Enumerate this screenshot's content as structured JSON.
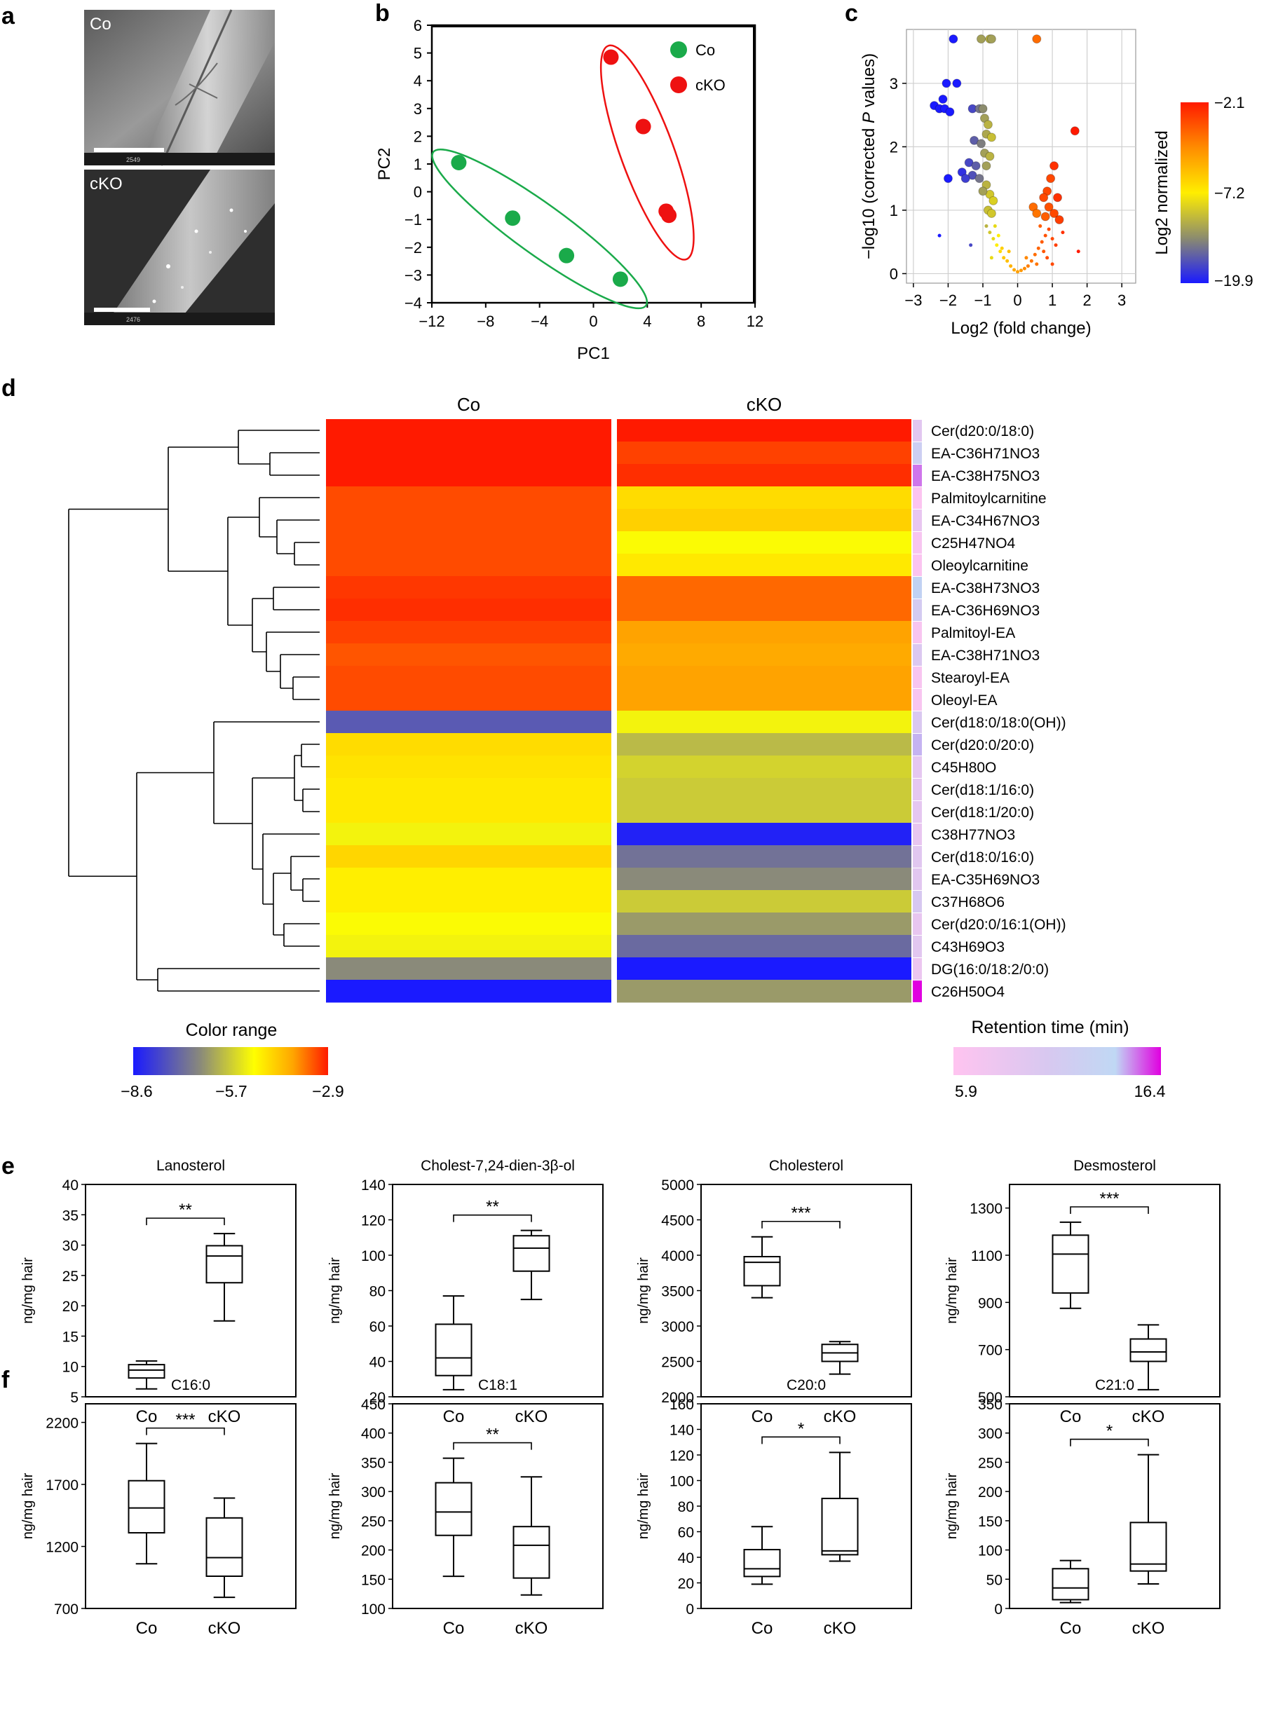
{
  "panels": {
    "a": {
      "letter": "a",
      "images": [
        {
          "label": "Co",
          "footer": "2549"
        },
        {
          "label": "cKO",
          "footer": "2476"
        }
      ]
    },
    "b": {
      "letter": "b",
      "chart_data": {
        "type": "scatter",
        "xlabel": "PC1",
        "ylabel": "PC2",
        "xlim": [
          -12,
          12
        ],
        "ylim": [
          -4,
          6
        ],
        "xticks": [
          -12,
          -8,
          -4,
          0,
          4,
          8,
          12
        ],
        "yticks": [
          -4,
          -3,
          -2,
          -1,
          0,
          1,
          2,
          3,
          4,
          5,
          6
        ],
        "legend_position": "top-right",
        "series": [
          {
            "name": "Co",
            "color": "#1aaa4a",
            "points": [
              [
                -10,
                1.05
              ],
              [
                -6,
                -0.95
              ],
              [
                -2,
                -2.3
              ],
              [
                2,
                -3.15
              ]
            ]
          },
          {
            "name": "cKO",
            "color": "#ee1111",
            "points": [
              [
                1.3,
                4.85
              ],
              [
                3.7,
                2.35
              ],
              [
                5.4,
                -0.7
              ],
              [
                5.6,
                -0.85
              ]
            ]
          }
        ]
      }
    },
    "c": {
      "letter": "c",
      "chart_data": {
        "type": "scatter",
        "xlabel": "Log2 (fold change)",
        "ylabel_prefix": "−log10 (corrected ",
        "ylabel_italic": "P",
        "ylabel_suffix": " values)",
        "xlim": [
          -3.2,
          3.4
        ],
        "ylim": [
          -0.15,
          3.85
        ],
        "xticks": [
          -3,
          -2,
          -1,
          0,
          1,
          2,
          3
        ],
        "yticks": [
          0,
          1,
          2,
          3
        ],
        "grid": true,
        "colorbar": {
          "label": "Log2 normalized",
          "ticks": [
            "−2.1",
            "−7.2",
            "−19.9"
          ],
          "colors": [
            "#ff1a00",
            "#ff8c00",
            "#ffee00",
            "#8c8c6e",
            "#1a1aff"
          ]
        },
        "points_large": [
          [
            -1.85,
            3.7,
            0
          ],
          [
            -1.05,
            3.7,
            0.3
          ],
          [
            -0.8,
            3.7,
            0.35
          ],
          [
            -0.75,
            3.7,
            0.3
          ],
          [
            0.55,
            3.7,
            0.82
          ],
          [
            -2.05,
            3.0,
            0
          ],
          [
            -1.75,
            3.0,
            0
          ],
          [
            -2.4,
            2.65,
            0
          ],
          [
            -2.25,
            2.6,
            0
          ],
          [
            -2.1,
            2.6,
            0
          ],
          [
            -1.95,
            2.55,
            0
          ],
          [
            -2.15,
            2.75,
            0
          ],
          [
            -1.3,
            2.6,
            0.1
          ],
          [
            -1.1,
            2.6,
            0.2
          ],
          [
            -1.0,
            2.6,
            0.25
          ],
          [
            -0.95,
            2.45,
            0.3
          ],
          [
            -0.85,
            2.35,
            0.35
          ],
          [
            -0.9,
            2.2,
            0.32
          ],
          [
            -0.75,
            2.15,
            0.38
          ],
          [
            -1.25,
            2.1,
            0.15
          ],
          [
            -1.05,
            2.05,
            0.22
          ],
          [
            -0.95,
            1.9,
            0.3
          ],
          [
            -0.8,
            1.85,
            0.35
          ],
          [
            -1.4,
            1.75,
            0.1
          ],
          [
            -1.2,
            1.7,
            0.15
          ],
          [
            -0.9,
            1.7,
            0.3
          ],
          [
            -1.6,
            1.6,
            0.05
          ],
          [
            -1.3,
            1.55,
            0.12
          ],
          [
            -1.1,
            1.5,
            0.2
          ],
          [
            -2.0,
            1.5,
            0
          ],
          [
            -1.5,
            1.5,
            0.08
          ],
          [
            -0.9,
            1.4,
            0.35
          ],
          [
            -0.8,
            1.25,
            0.4
          ],
          [
            -0.7,
            1.15,
            0.42
          ],
          [
            -0.85,
            1.0,
            0.38
          ],
          [
            -0.75,
            0.95,
            0.4
          ],
          [
            -1.0,
            1.3,
            0.3
          ],
          [
            1.65,
            2.25,
            1.0
          ],
          [
            1.05,
            1.7,
            0.95
          ],
          [
            0.95,
            1.5,
            0.9
          ],
          [
            0.85,
            1.3,
            0.9
          ],
          [
            0.75,
            1.2,
            0.9
          ],
          [
            1.15,
            1.2,
            0.95
          ],
          [
            0.9,
            1.05,
            0.88
          ],
          [
            0.45,
            1.05,
            0.82
          ],
          [
            0.55,
            0.95,
            0.8
          ],
          [
            0.8,
            0.9,
            0.85
          ],
          [
            1.05,
            0.95,
            0.9
          ],
          [
            1.2,
            0.85,
            0.92
          ]
        ],
        "points_small": [
          [
            -2.25,
            0.6,
            0
          ],
          [
            -1.35,
            0.45,
            0.1
          ],
          [
            -0.9,
            0.75,
            0.35
          ],
          [
            -0.8,
            0.65,
            0.4
          ],
          [
            -0.7,
            0.55,
            0.45
          ],
          [
            -0.6,
            0.45,
            0.5
          ],
          [
            -0.5,
            0.35,
            0.55
          ],
          [
            -0.4,
            0.25,
            0.6
          ],
          [
            -0.3,
            0.2,
            0.62
          ],
          [
            -0.2,
            0.12,
            0.65
          ],
          [
            -0.1,
            0.06,
            0.68
          ],
          [
            0.0,
            0.03,
            0.7
          ],
          [
            0.1,
            0.05,
            0.72
          ],
          [
            0.2,
            0.08,
            0.75
          ],
          [
            0.3,
            0.12,
            0.78
          ],
          [
            0.4,
            0.2,
            0.8
          ],
          [
            0.5,
            0.3,
            0.82
          ],
          [
            0.6,
            0.4,
            0.84
          ],
          [
            0.7,
            0.5,
            0.86
          ],
          [
            0.8,
            0.6,
            0.88
          ],
          [
            0.9,
            0.7,
            0.9
          ],
          [
            1.0,
            0.55,
            0.9
          ],
          [
            1.1,
            0.45,
            0.92
          ],
          [
            1.3,
            0.65,
            0.95
          ],
          [
            1.75,
            0.35,
            1.0
          ],
          [
            -0.65,
            0.75,
            0.45
          ],
          [
            -0.55,
            0.6,
            0.5
          ],
          [
            -0.45,
            0.4,
            0.58
          ],
          [
            0.65,
            0.75,
            0.85
          ],
          [
            0.75,
            0.35,
            0.87
          ],
          [
            0.55,
            0.15,
            0.8
          ],
          [
            -0.25,
            0.35,
            0.62
          ],
          [
            0.25,
            0.25,
            0.76
          ],
          [
            0.85,
            0.25,
            0.89
          ],
          [
            1.0,
            0.15,
            0.9
          ],
          [
            -0.75,
            0.25,
            0.45
          ]
        ]
      }
    },
    "d": {
      "letter": "d",
      "chart_data": {
        "type": "heatmap",
        "columns": [
          "Co",
          "cKO"
        ],
        "rows": [
          "Cer(d20:0/18:0)",
          "EA-C36H71NO3",
          "EA-C38H75NO3",
          "Palmitoylcarnitine",
          "EA-C34H67NO3",
          "C25H47NO4",
          "Oleoylcarnitine",
          "EA-C38H73NO3",
          "EA-C36H69NO3",
          "Palmitoyl-EA",
          "EA-C38H71NO3",
          "Stearoyl-EA",
          "Oleoyl-EA",
          "Cer(d18:0/18:0(OH))",
          "Cer(d20:0/20:0)",
          "C45H80O",
          "Cer(d18:1/16:0)",
          "Cer(d18:1/20:0)",
          "C38H77NO3",
          "Cer(d18:0/16:0)",
          "EA-C35H69NO3",
          "C37H68O6",
          "Cer(d20:0/16:1(OH))",
          "C43H69O3",
          "DG(16:0/18:2/0:0)",
          "C26H50O4"
        ],
        "values": [
          [
            -2.9,
            -2.9
          ],
          [
            -2.9,
            -3.3
          ],
          [
            -2.9,
            -3.1
          ],
          [
            -3.4,
            -5.2
          ],
          [
            -3.4,
            -5.0
          ],
          [
            -3.4,
            -5.8
          ],
          [
            -3.4,
            -5.4
          ],
          [
            -3.2,
            -3.7
          ],
          [
            -3.1,
            -3.7
          ],
          [
            -3.3,
            -4.3
          ],
          [
            -3.5,
            -4.4
          ],
          [
            -3.4,
            -4.3
          ],
          [
            -3.4,
            -4.3
          ],
          [
            -7.8,
            -5.9
          ],
          [
            -5.2,
            -6.6
          ],
          [
            -5.3,
            -6.3
          ],
          [
            -5.4,
            -6.4
          ],
          [
            -5.4,
            -6.4
          ],
          [
            -5.9,
            -8.5
          ],
          [
            -5.1,
            -7.5
          ],
          [
            -5.5,
            -7.2
          ],
          [
            -5.5,
            -6.4
          ],
          [
            -5.8,
            -7.0
          ],
          [
            -5.9,
            -7.6
          ],
          [
            -7.2,
            -8.6
          ],
          [
            -8.6,
            -7.0
          ]
        ],
        "retention": [
          8.5,
          11.0,
          14.5,
          6.2,
          8.0,
          6.6,
          6.3,
          13.0,
          10.0,
          6.5,
          9.0,
          6.5,
          6.5,
          9.2,
          13.5,
          8.2,
          8.2,
          8.2,
          8.0,
          8.6,
          8.5,
          9.5,
          8.0,
          8.5,
          7.6,
          16.4
        ],
        "color_range": {
          "label": "Color range",
          "ticks": [
            "−8.6",
            "−5.7",
            "−2.9"
          ],
          "min": -8.6,
          "max": -2.9
        },
        "retention_bar": {
          "label": "Retention time (min)",
          "ticks": [
            "5.9",
            "16.4"
          ],
          "min": 5.9,
          "max": 16.4
        }
      }
    },
    "e": {
      "letter": "e",
      "plots": [
        {
          "title": "Lanosterol",
          "ylabel": "ng/mg hair",
          "ylim": [
            5,
            40
          ],
          "yticks": [
            5,
            10,
            15,
            20,
            25,
            30,
            35,
            40
          ],
          "categories": [
            "Co",
            "cKO"
          ],
          "sig": "**",
          "boxes": [
            {
              "min": 6.3,
              "q1": 8.1,
              "median": 9.4,
              "q3": 10.3,
              "max": 10.9
            },
            {
              "min": 17.5,
              "q1": 23.8,
              "median": 28.2,
              "q3": 29.9,
              "max": 31.9
            }
          ]
        },
        {
          "title": "Cholest-7,24-dien-3β-ol",
          "ylabel": "ng/mg hair",
          "ylim": [
            20,
            140
          ],
          "yticks": [
            20,
            40,
            60,
            80,
            100,
            120,
            140
          ],
          "categories": [
            "Co",
            "cKO"
          ],
          "sig": "**",
          "boxes": [
            {
              "min": 24,
              "q1": 32,
              "median": 42,
              "q3": 61,
              "max": 77
            },
            {
              "min": 75,
              "q1": 91,
              "median": 104,
              "q3": 111,
              "max": 114
            }
          ]
        },
        {
          "title": "Cholesterol",
          "ylabel": "ng/mg hair",
          "ylim": [
            2000,
            5000
          ],
          "yticks": [
            2000,
            2500,
            3000,
            3500,
            4000,
            4500,
            5000
          ],
          "categories": [
            "Co",
            "cKO"
          ],
          "sig": "***",
          "boxes": [
            {
              "min": 3400,
              "q1": 3570,
              "median": 3900,
              "q3": 3980,
              "max": 4260
            },
            {
              "min": 2320,
              "q1": 2500,
              "median": 2620,
              "q3": 2740,
              "max": 2780
            }
          ]
        },
        {
          "title": "Desmosterol",
          "ylabel": "ng/mg hair",
          "ylim": [
            500,
            1400
          ],
          "yticks": [
            500,
            700,
            900,
            1100,
            1300
          ],
          "categories": [
            "Co",
            "cKO"
          ],
          "sig": "***",
          "boxes": [
            {
              "min": 875,
              "q1": 940,
              "median": 1105,
              "q3": 1185,
              "max": 1240
            },
            {
              "min": 530,
              "q1": 650,
              "median": 690,
              "q3": 745,
              "max": 805
            }
          ]
        }
      ]
    },
    "f": {
      "letter": "f",
      "plots": [
        {
          "title": "C16:0",
          "ylabel": "ng/mg hair",
          "ylim": [
            700,
            2350
          ],
          "yticks": [
            700,
            1200,
            1700,
            2200
          ],
          "categories": [
            "Co",
            "cKO"
          ],
          "sig": "***",
          "boxes": [
            {
              "min": 1060,
              "q1": 1310,
              "median": 1510,
              "q3": 1730,
              "max": 2030
            },
            {
              "min": 790,
              "q1": 960,
              "median": 1110,
              "q3": 1430,
              "max": 1590
            }
          ]
        },
        {
          "title": "C18:1",
          "ylabel": "ng/mg hair",
          "ylim": [
            100,
            450
          ],
          "yticks": [
            100,
            150,
            200,
            250,
            300,
            350,
            400,
            450
          ],
          "categories": [
            "Co",
            "cKO"
          ],
          "sig": "**",
          "boxes": [
            {
              "min": 155,
              "q1": 225,
              "median": 265,
              "q3": 315,
              "max": 357
            },
            {
              "min": 123,
              "q1": 152,
              "median": 208,
              "q3": 240,
              "max": 325
            }
          ]
        },
        {
          "title": "C20:0",
          "ylabel": "ng/mg hair",
          "ylim": [
            0,
            160
          ],
          "yticks": [
            0,
            20,
            40,
            60,
            80,
            100,
            120,
            140,
            160
          ],
          "categories": [
            "Co",
            "cKO"
          ],
          "sig": "*",
          "boxes": [
            {
              "min": 19,
              "q1": 25,
              "median": 31,
              "q3": 46,
              "max": 64
            },
            {
              "min": 37,
              "q1": 42,
              "median": 45,
              "q3": 86,
              "max": 122
            }
          ]
        },
        {
          "title": "C21:0",
          "ylabel": "ng/mg hair",
          "ylim": [
            0,
            350
          ],
          "yticks": [
            0,
            50,
            100,
            150,
            200,
            250,
            300,
            350
          ],
          "categories": [
            "Co",
            "cKO"
          ],
          "sig": "*",
          "boxes": [
            {
              "min": 10,
              "q1": 15,
              "median": 35,
              "q3": 68,
              "max": 82
            },
            {
              "min": 42,
              "q1": 64,
              "median": 76,
              "q3": 147,
              "max": 263
            }
          ]
        }
      ]
    }
  }
}
